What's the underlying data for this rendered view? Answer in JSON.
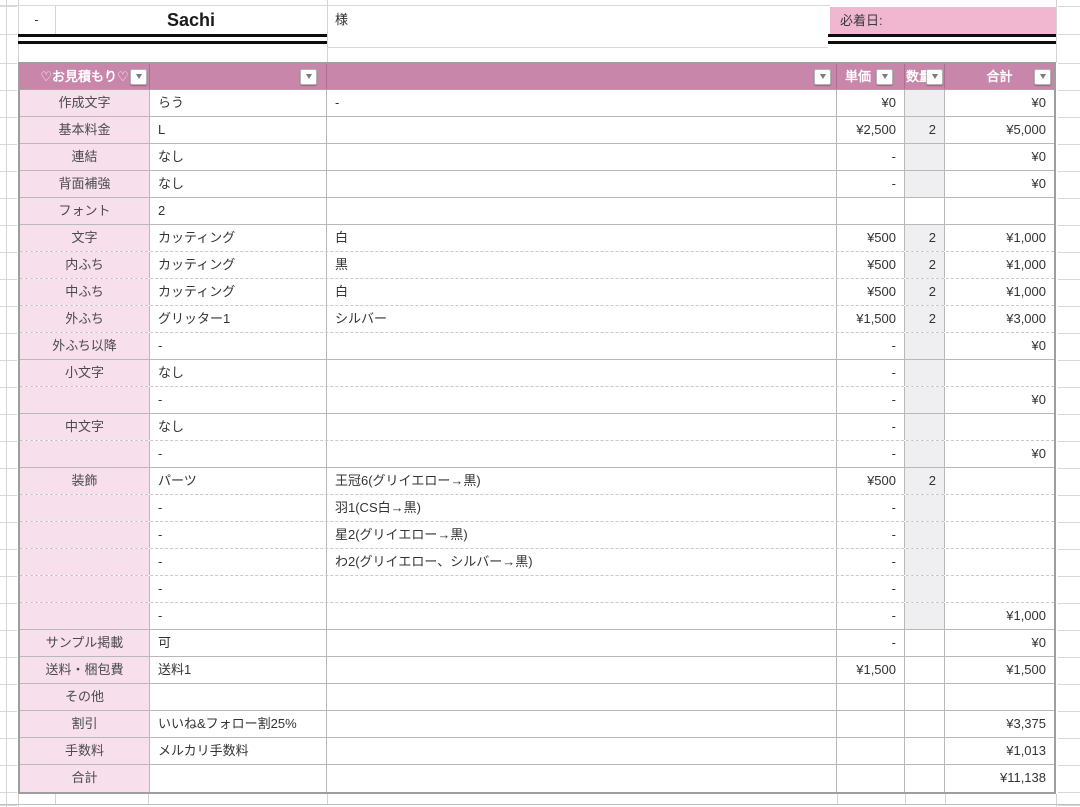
{
  "top": {
    "dash_cell": "-",
    "client_name": "Sachi",
    "honorific": "様",
    "deadline_label": "必着日:"
  },
  "table": {
    "header": {
      "title": "♡お見積もり♡",
      "col_item": "",
      "col_detail": "",
      "unit_price": "単価",
      "quantity": "数量",
      "total": "合計"
    },
    "rows": [
      {
        "label": "作成文字",
        "item": "らう",
        "detail": "-",
        "unit": "¥0",
        "qty": "",
        "total": "¥0",
        "qty_gray": true,
        "sep": "solid"
      },
      {
        "label": "基本料金",
        "item": "L",
        "detail": "",
        "unit": "¥2,500",
        "qty": "2",
        "total": "¥5,000",
        "qty_gray": true,
        "sep": "solid"
      },
      {
        "label": "連結",
        "item": "なし",
        "detail": "",
        "unit": "-",
        "qty": "",
        "total": "¥0",
        "qty_gray": true,
        "sep": "solid"
      },
      {
        "label": "背面補強",
        "item": "なし",
        "detail": "",
        "unit": "-",
        "qty": "",
        "total": "¥0",
        "qty_gray": true,
        "sep": "solid"
      },
      {
        "label": "フォント",
        "item": "2",
        "detail": "",
        "unit": "",
        "qty": "",
        "total": "",
        "qty_gray": false,
        "sep": "solid"
      },
      {
        "label": "文字",
        "item": "カッティング",
        "detail": "白",
        "unit": "¥500",
        "qty": "2",
        "total": "¥1,000",
        "qty_gray": true,
        "sep": "dashed"
      },
      {
        "label": "内ふち",
        "item": "カッティング",
        "detail": "黒",
        "unit": "¥500",
        "qty": "2",
        "total": "¥1,000",
        "qty_gray": true,
        "sep": "dashed"
      },
      {
        "label": "中ふち",
        "item": "カッティング",
        "detail": "白",
        "unit": "¥500",
        "qty": "2",
        "total": "¥1,000",
        "qty_gray": true,
        "sep": "dashed"
      },
      {
        "label": "外ふち",
        "item": "グリッター1",
        "detail": "シルバー",
        "unit": "¥1,500",
        "qty": "2",
        "total": "¥3,000",
        "qty_gray": true,
        "sep": "dashed"
      },
      {
        "label": "外ふち以降",
        "item": "-",
        "detail": "",
        "unit": "-",
        "qty": "",
        "total": "¥0",
        "qty_gray": true,
        "sep": "solid"
      },
      {
        "label": "小文字",
        "item": "なし",
        "detail": "",
        "unit": "-",
        "qty": "",
        "total": "",
        "qty_gray": true,
        "sep": "dashed"
      },
      {
        "label": "",
        "item": "-",
        "detail": "",
        "unit": "-",
        "qty": "",
        "total": "¥0",
        "qty_gray": true,
        "sep": "solid"
      },
      {
        "label": "中文字",
        "item": "なし",
        "detail": "",
        "unit": "-",
        "qty": "",
        "total": "",
        "qty_gray": true,
        "sep": "dashed"
      },
      {
        "label": "",
        "item": "-",
        "detail": "",
        "unit": "-",
        "qty": "",
        "total": "¥0",
        "qty_gray": true,
        "sep": "solid"
      },
      {
        "label": "装飾",
        "item": "パーツ",
        "detail": "王冠6(グリイエロー→黒)",
        "unit": "¥500",
        "qty": "2",
        "total": "",
        "qty_gray": true,
        "sep": "dashed"
      },
      {
        "label": "",
        "item": "-",
        "detail": "羽1(CS白→黒)",
        "unit": "-",
        "qty": "",
        "total": "",
        "qty_gray": true,
        "sep": "dashed"
      },
      {
        "label": "",
        "item": "-",
        "detail": "星2(グリイエロー→黒)",
        "unit": "-",
        "qty": "",
        "total": "",
        "qty_gray": true,
        "sep": "dashed"
      },
      {
        "label": "",
        "item": "-",
        "detail": "わ2(グリイエロー、シルバー→黒)",
        "unit": "-",
        "qty": "",
        "total": "",
        "qty_gray": true,
        "sep": "dashed"
      },
      {
        "label": "",
        "item": "-",
        "detail": "",
        "unit": "-",
        "qty": "",
        "total": "",
        "qty_gray": true,
        "sep": "dashed"
      },
      {
        "label": "",
        "item": "-",
        "detail": "",
        "unit": "-",
        "qty": "",
        "total": "¥1,000",
        "qty_gray": true,
        "sep": "solid"
      },
      {
        "label": "サンプル掲載",
        "item": "可",
        "detail": "",
        "unit": "-",
        "qty": "",
        "total": "¥0",
        "qty_gray": false,
        "sep": "solid"
      },
      {
        "label": "送料・梱包費",
        "item": "送料1",
        "detail": "",
        "unit": "¥1,500",
        "qty": "",
        "total": "¥1,500",
        "qty_gray": false,
        "sep": "solid"
      },
      {
        "label": "その他",
        "item": "",
        "detail": "",
        "unit": "",
        "qty": "",
        "total": "",
        "qty_gray": false,
        "sep": "solid"
      },
      {
        "label": "割引",
        "item": "いいね&フォロー割25%",
        "detail": "",
        "unit": "",
        "qty": "",
        "total": "¥3,375",
        "qty_gray": false,
        "sep": "solid"
      },
      {
        "label": "手数料",
        "item": "メルカリ手数料",
        "detail": "",
        "unit": "",
        "qty": "",
        "total": "¥1,013",
        "qty_gray": false,
        "sep": "solid"
      },
      {
        "label": "合計",
        "item": "",
        "detail": "",
        "unit": "",
        "qty": "",
        "total": "¥11,138",
        "qty_gray": false,
        "sep": "solid"
      }
    ]
  },
  "colors": {
    "header_pink": "#c986ab",
    "label_pink": "#f7dfec",
    "deadline_pink": "#f1b6d0",
    "quantity_gray": "#efeef0",
    "gridline": "#b8b8b8",
    "double_border": "#0d0d0d"
  }
}
